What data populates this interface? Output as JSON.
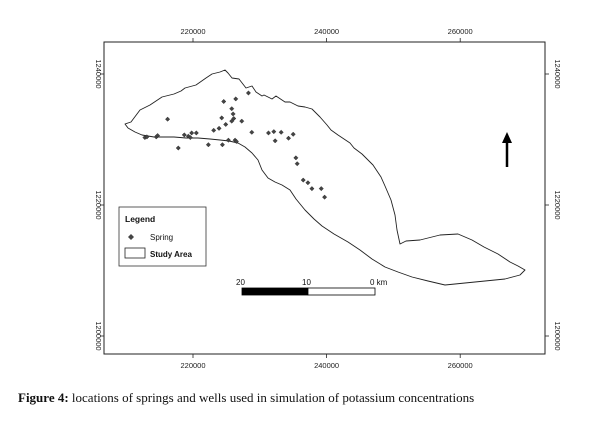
{
  "map": {
    "x_ticks": [
      "220000",
      "240000",
      "260000"
    ],
    "y_ticks": [
      "1240000",
      "1220000",
      "1200000"
    ]
  },
  "legend": {
    "title": "Legend",
    "items": [
      {
        "label": "Spring",
        "symbol": "diamond-marker"
      },
      {
        "label": "Study Area",
        "symbol": "polygon-outline"
      }
    ]
  },
  "scale_bar": {
    "labels": [
      "20",
      "10",
      "0 km"
    ]
  },
  "north_arrow": {
    "icon": "north-arrow-icon"
  },
  "caption": {
    "label": "Figure  4:",
    "text": "locations of  springs and wells used in simulation of potassium concentrations"
  },
  "chart_data": {
    "type": "scatter",
    "x_unit": "easting",
    "y_unit": "northing",
    "xlim": [
      208000,
      272000
    ],
    "ylim": [
      1196000,
      1245000
    ],
    "series": [
      {
        "name": "Spring",
        "points": [
          [
            212800,
            1230300
          ],
          [
            213100,
            1230400
          ],
          [
            214500,
            1230400
          ],
          [
            214700,
            1230600
          ],
          [
            216200,
            1233100
          ],
          [
            217800,
            1228700
          ],
          [
            218700,
            1230700
          ],
          [
            219300,
            1230500
          ],
          [
            219600,
            1230300
          ],
          [
            219800,
            1231000
          ],
          [
            220500,
            1231000
          ],
          [
            222300,
            1229200
          ],
          [
            223100,
            1231400
          ],
          [
            223900,
            1231700
          ],
          [
            224300,
            1233300
          ],
          [
            224400,
            1229200
          ],
          [
            224600,
            1235800
          ],
          [
            224900,
            1232300
          ],
          [
            225300,
            1229900
          ],
          [
            225800,
            1234700
          ],
          [
            225800,
            1232800
          ],
          [
            226000,
            1233900
          ],
          [
            226100,
            1233200
          ],
          [
            226300,
            1229900
          ],
          [
            226500,
            1229700
          ],
          [
            226400,
            1236200
          ],
          [
            227300,
            1232800
          ],
          [
            228300,
            1237100
          ],
          [
            228800,
            1231100
          ],
          [
            231300,
            1231000
          ],
          [
            232100,
            1231200
          ],
          [
            232300,
            1229800
          ],
          [
            233200,
            1231100
          ],
          [
            234300,
            1230200
          ],
          [
            235000,
            1230800
          ],
          [
            235400,
            1227200
          ],
          [
            235600,
            1226300
          ],
          [
            236500,
            1223800
          ],
          [
            237200,
            1223400
          ],
          [
            237800,
            1222500
          ],
          [
            239200,
            1222500
          ],
          [
            239700,
            1221200
          ]
        ]
      }
    ]
  }
}
